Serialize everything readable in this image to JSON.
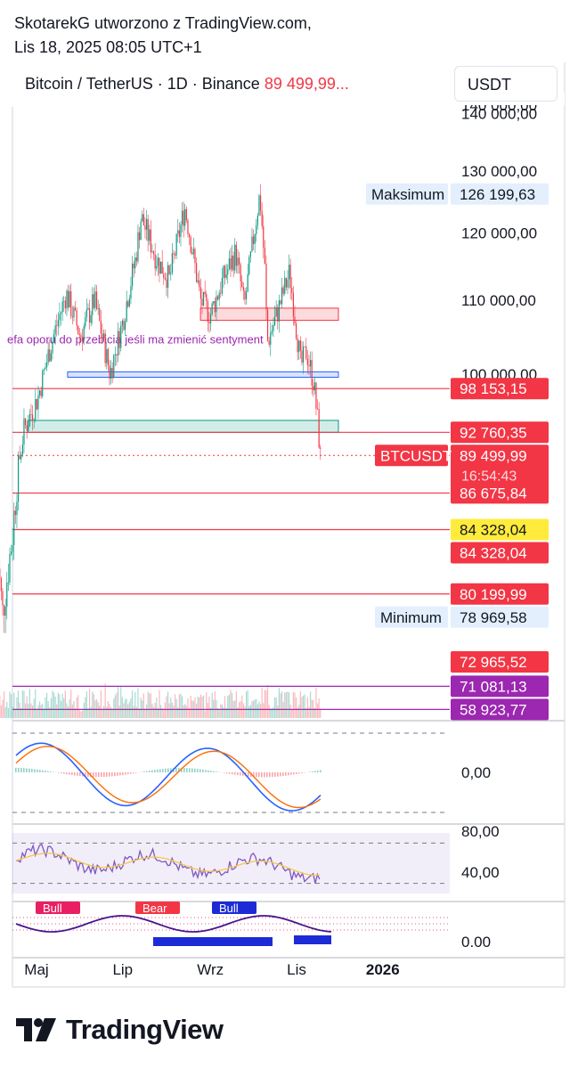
{
  "header": {
    "line1": "SkotarekG utworzono z TradingView.com,",
    "line2": "Lis 18, 2025 08:05 UTC+1"
  },
  "symbol": {
    "name": "Bitcoin / TetherUS · 1D · Binance",
    "price": "89 499,99..."
  },
  "currency_button": "USDT",
  "brand": "TradingView",
  "colors": {
    "up": "#089981",
    "down": "#f23645",
    "level": "#f23645",
    "purple": "#9c27b0",
    "current_price": "#f23645",
    "highlight_label": "#ffeb3b"
  },
  "chart_data": {
    "type": "candlestick",
    "symbol": "BTCUSDT",
    "y_axis": {
      "ticks": [
        {
          "value": 140000,
          "label": "140 000,00"
        },
        {
          "value": 130000,
          "label": "130 000,00"
        },
        {
          "value": 120000,
          "label": "120 000,00"
        },
        {
          "value": 110000,
          "label": "110 000,00"
        },
        {
          "value": 100000,
          "label": "100 000,00"
        }
      ],
      "scale": "log"
    },
    "x_axis": {
      "ticks": [
        {
          "date": "2025-05-01",
          "label": "Maj"
        },
        {
          "date": "2025-07-01",
          "label": "Lip"
        },
        {
          "date": "2025-09-01",
          "label": "Wrz"
        },
        {
          "date": "2025-11-01",
          "label": "Lis"
        },
        {
          "date": "2026-01-01",
          "label": "2026",
          "bold": true
        }
      ]
    },
    "price_path": [
      {
        "date": "2025-04-03",
        "close": 83000
      },
      {
        "date": "2025-04-07",
        "close": 78969.58
      },
      {
        "date": "2025-04-14",
        "close": 84000
      },
      {
        "date": "2025-04-22",
        "close": 93000
      },
      {
        "date": "2025-05-02",
        "close": 97000
      },
      {
        "date": "2025-05-10",
        "close": 103000
      },
      {
        "date": "2025-05-22",
        "close": 111000
      },
      {
        "date": "2025-06-01",
        "close": 105000
      },
      {
        "date": "2025-06-11",
        "close": 110000
      },
      {
        "date": "2025-06-22",
        "close": 100000
      },
      {
        "date": "2025-07-01",
        "close": 107000
      },
      {
        "date": "2025-07-10",
        "close": 116000
      },
      {
        "date": "2025-07-14",
        "close": 122500
      },
      {
        "date": "2025-07-25",
        "close": 116000
      },
      {
        "date": "2025-08-03",
        "close": 113000
      },
      {
        "date": "2025-08-14",
        "close": 124000
      },
      {
        "date": "2025-08-25",
        "close": 110000
      },
      {
        "date": "2025-09-01",
        "close": 108000
      },
      {
        "date": "2025-09-10",
        "close": 113000
      },
      {
        "date": "2025-09-19",
        "close": 117000
      },
      {
        "date": "2025-09-25",
        "close": 109000
      },
      {
        "date": "2025-10-02",
        "close": 120000
      },
      {
        "date": "2025-10-06",
        "close": 126199.63
      },
      {
        "date": "2025-10-10",
        "close": 113000
      },
      {
        "date": "2025-10-11",
        "close": 104000
      },
      {
        "date": "2025-10-18",
        "close": 108000
      },
      {
        "date": "2025-10-27",
        "close": 114000
      },
      {
        "date": "2025-11-04",
        "close": 101000
      },
      {
        "date": "2025-11-08",
        "close": 103000
      },
      {
        "date": "2025-11-13",
        "close": 99000
      },
      {
        "date": "2025-11-16",
        "close": 94000
      },
      {
        "date": "2025-11-18",
        "close": 89499.99
      }
    ],
    "zones": [
      {
        "from": 107200,
        "to": 108900,
        "start": "2025-08-25",
        "end": "2025-11-18",
        "color": "#f23645",
        "text": "efa oporu do przebicia jeśli ma zmienić sentyment"
      },
      {
        "from": 99600,
        "to": 100300,
        "start": "2025-05-23",
        "end": "2025-11-18",
        "color": "#2962ff"
      },
      {
        "from": 92760,
        "to": 94200,
        "start": "2025-04-25",
        "end": "2025-11-18",
        "color": "#089981"
      }
    ],
    "price_labels": [
      {
        "value": 126199.63,
        "label": "126 199,63",
        "tag": "Maksimum",
        "style": "light"
      },
      {
        "value": 98153.15,
        "label": "98 153,15",
        "style": "red",
        "line": true
      },
      {
        "value": 92760.35,
        "label": "92 760,35",
        "style": "red",
        "line": true
      },
      {
        "value": 89499.99,
        "label": "89 499,99",
        "tag": "BTCUSDT",
        "countdown": "16:54:43",
        "style": "red",
        "dotted": true
      },
      {
        "value": 86675.84,
        "label": "86 675,84",
        "style": "red",
        "line": true
      },
      {
        "value": 84328.04,
        "label": "84 328,04",
        "style": "yellow",
        "line": true
      },
      {
        "value": 84328.04,
        "label": "84 328,04",
        "style": "red"
      },
      {
        "value": 80199.99,
        "label": "80 199,99",
        "style": "red",
        "line": true
      },
      {
        "value": 78969.58,
        "label": "78 969,58",
        "tag": "Minimum",
        "style": "light"
      },
      {
        "value": 72965.52,
        "label": "72 965,52",
        "style": "red"
      },
      {
        "value": 71081.13,
        "label": "71 081,13",
        "style": "purple",
        "line": true
      },
      {
        "value": 58923.77,
        "label": "58 923,77",
        "style": "purple",
        "line": true
      }
    ],
    "indicators": {
      "macd": {
        "zero_label": "0,00"
      },
      "rsi": {
        "levels": [
          80,
          40
        ],
        "labels": [
          "80,00",
          "40,00"
        ]
      },
      "bull_bear": {
        "zero_label": "0.00",
        "tags": [
          "Bull",
          "Bear",
          "Bull"
        ]
      }
    }
  }
}
